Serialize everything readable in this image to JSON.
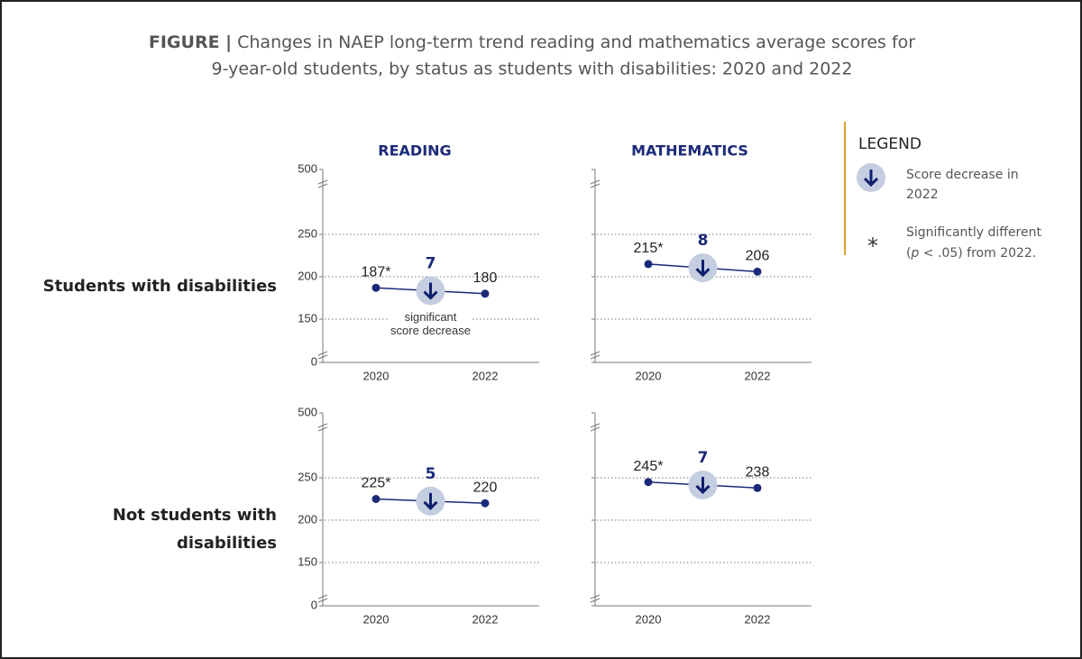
{
  "figure_label": "FIGURE |",
  "title_lines": [
    "Changes in NAEP long-term trend reading and mathematics average scores for",
    "9-year-old students, by status as students with disabilities: 2020 and 2022"
  ],
  "columns": [
    "READING",
    "MATHEMATICS"
  ],
  "rows": [
    [
      "Students with disabilities"
    ],
    [
      "Not students with",
      "disabilities"
    ]
  ],
  "legend": {
    "title": "LEGEND",
    "decrease_lines": [
      "Score decrease in",
      "2022"
    ],
    "significance_symbol": "*",
    "significance_lines": [
      [
        "Significantly different"
      ],
      [
        "(",
        "p",
        " < .05) from 2022."
      ]
    ]
  },
  "chart_data": [
    {
      "type": "line",
      "x": [
        "2020",
        "2022"
      ],
      "values": [
        187,
        180
      ],
      "value_labels": [
        "187*",
        "180"
      ],
      "change": 7,
      "color": "#1b2a78",
      "ylim": [
        0,
        500
      ],
      "yticks": [
        0,
        150,
        200,
        250,
        500
      ],
      "ytick_labels": true,
      "y_breaks": [
        [
          0,
          150
        ],
        [
          250,
          500
        ]
      ],
      "grid": true,
      "annotation_lines": [
        "significant",
        "score decrease"
      ]
    },
    {
      "type": "line",
      "x": [
        "2020",
        "2022"
      ],
      "values": [
        215,
        206
      ],
      "value_labels": [
        "215*",
        "206"
      ],
      "change": 8,
      "color": "#1b2a78",
      "ylim": [
        0,
        500
      ],
      "yticks": [
        0,
        150,
        200,
        250,
        500
      ],
      "ytick_labels": false,
      "y_breaks": [
        [
          0,
          150
        ],
        [
          250,
          500
        ]
      ],
      "grid": true
    },
    {
      "type": "line",
      "x": [
        "2020",
        "2022"
      ],
      "values": [
        225,
        220
      ],
      "value_labels": [
        "225*",
        "220"
      ],
      "change": 5,
      "color": "#1b2a78",
      "ylim": [
        0,
        500
      ],
      "yticks": [
        0,
        150,
        200,
        250,
        500
      ],
      "ytick_labels": true,
      "y_breaks": [
        [
          0,
          150
        ],
        [
          250,
          500
        ]
      ],
      "grid": true
    },
    {
      "type": "line",
      "x": [
        "2020",
        "2022"
      ],
      "values": [
        245,
        238
      ],
      "value_labels": [
        "245*",
        "238"
      ],
      "change": 7,
      "color": "#1b2a78",
      "ylim": [
        0,
        500
      ],
      "yticks": [
        0,
        150,
        200,
        250,
        500
      ],
      "ytick_labels": false,
      "y_breaks": [
        [
          0,
          150
        ],
        [
          250,
          500
        ]
      ],
      "grid": true
    }
  ]
}
